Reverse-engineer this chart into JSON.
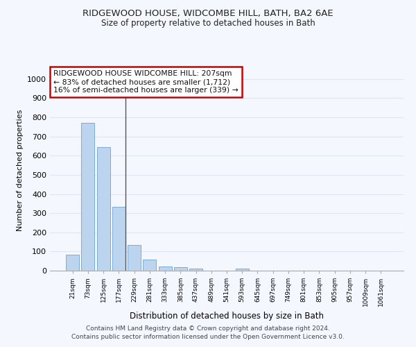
{
  "title1": "RIDGEWOOD HOUSE, WIDCOMBE HILL, BATH, BA2 6AE",
  "title2": "Size of property relative to detached houses in Bath",
  "xlabel": "Distribution of detached houses by size in Bath",
  "ylabel": "Number of detached properties",
  "categories": [
    "21sqm",
    "73sqm",
    "125sqm",
    "177sqm",
    "229sqm",
    "281sqm",
    "333sqm",
    "385sqm",
    "437sqm",
    "489sqm",
    "541sqm",
    "593sqm",
    "645sqm",
    "697sqm",
    "749sqm",
    "801sqm",
    "853sqm",
    "905sqm",
    "957sqm",
    "1009sqm",
    "1061sqm"
  ],
  "values": [
    82,
    770,
    645,
    332,
    133,
    58,
    23,
    19,
    10,
    0,
    0,
    10,
    0,
    0,
    0,
    0,
    0,
    0,
    0,
    0,
    0
  ],
  "bar_color": "#bdd4ee",
  "bar_edge_color": "#7aadd4",
  "annotation_line1": "RIDGEWOOD HOUSE WIDCOMBE HILL: 207sqm",
  "annotation_line2": "← 83% of detached houses are smaller (1,712)",
  "annotation_line3": "16% of semi-detached houses are larger (339) →",
  "annotation_box_color": "#ffffff",
  "annotation_border_color": "#cc0000",
  "vline_color": "#555555",
  "vline_x": 3.42,
  "ylim": [
    0,
    1050
  ],
  "yticks": [
    0,
    100,
    200,
    300,
    400,
    500,
    600,
    700,
    800,
    900,
    1000
  ],
  "background_color": "#f5f7ff",
  "grid_color": "#e0e5f5",
  "footer_text": "Contains HM Land Registry data © Crown copyright and database right 2024.\nContains public sector information licensed under the Open Government Licence v3.0."
}
